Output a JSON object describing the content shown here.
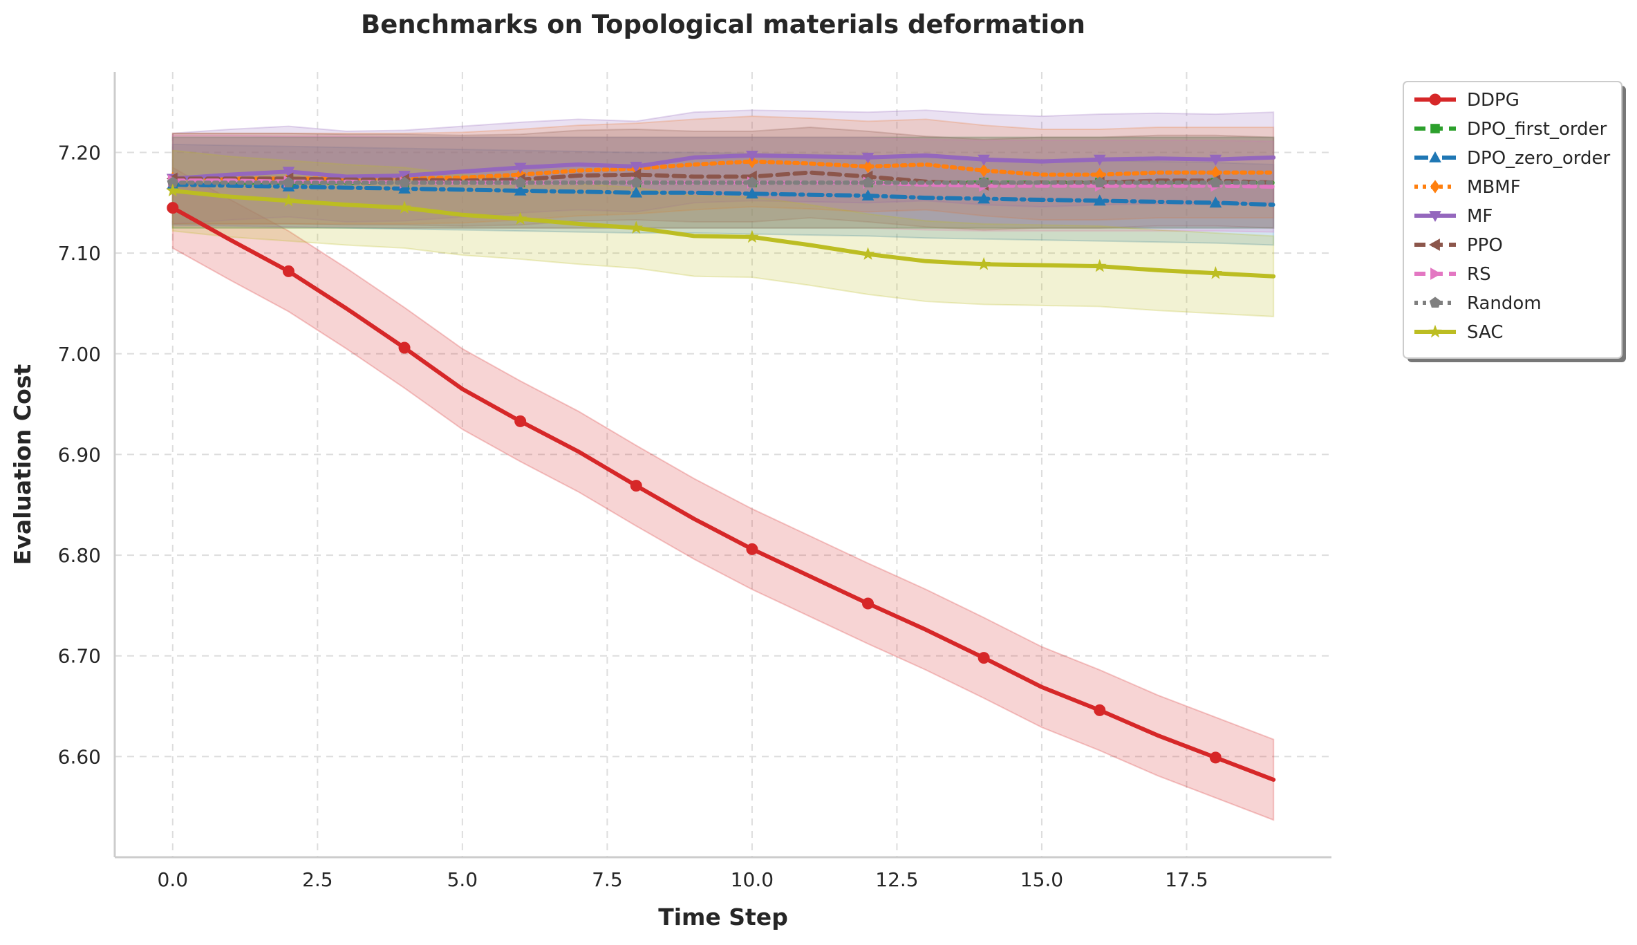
{
  "chart_data": {
    "type": "line",
    "title": "Benchmarks on Topological materials deformation",
    "xlabel": "Time Step",
    "ylabel": "Evaluation Cost",
    "xlim": [
      -1.0,
      20.0
    ],
    "ylim": [
      6.5,
      7.28
    ],
    "xticks": [
      0.0,
      2.5,
      5.0,
      7.5,
      10.0,
      12.5,
      15.0,
      17.5
    ],
    "xtick_labels": [
      "0.0",
      "2.5",
      "5.0",
      "7.5",
      "10.0",
      "12.5",
      "15.0",
      "17.5"
    ],
    "yticks": [
      6.6,
      6.7,
      6.8,
      6.9,
      7.0,
      7.1,
      7.2
    ],
    "ytick_labels": [
      "6.60",
      "6.70",
      "6.80",
      "6.90",
      "7.00",
      "7.10",
      "7.20"
    ],
    "grid": true,
    "legend_position": "outside-top-right",
    "x": [
      0,
      1,
      2,
      3,
      4,
      5,
      6,
      7,
      8,
      9,
      10,
      11,
      12,
      13,
      14,
      15,
      16,
      17,
      18,
      19
    ],
    "series": [
      {
        "name": "DDPG",
        "color": "#d62728",
        "dash": "solid",
        "marker": "circle",
        "values": [
          7.145,
          7.113,
          7.082,
          7.045,
          7.006,
          6.965,
          6.933,
          6.903,
          6.869,
          6.836,
          6.806,
          6.779,
          6.752,
          6.726,
          6.698,
          6.669,
          6.646,
          6.621,
          6.599,
          6.577
        ],
        "band": 0.04
      },
      {
        "name": "DPO_first_order",
        "color": "#2ca02c",
        "dash": "dashed",
        "marker": "square",
        "values": [
          7.17,
          7.17,
          7.17,
          7.17,
          7.17,
          7.17,
          7.17,
          7.17,
          7.17,
          7.17,
          7.17,
          7.17,
          7.17,
          7.17,
          7.17,
          7.17,
          7.17,
          7.17,
          7.17,
          7.17
        ],
        "band": 0.045
      },
      {
        "name": "DPO_zero_order",
        "color": "#1f77b4",
        "dash": "dashdot",
        "marker": "triangle-up",
        "values": [
          7.168,
          7.167,
          7.166,
          7.165,
          7.164,
          7.163,
          7.162,
          7.161,
          7.16,
          7.16,
          7.159,
          7.158,
          7.157,
          7.155,
          7.154,
          7.153,
          7.152,
          7.151,
          7.15,
          7.148
        ],
        "band": 0.04
      },
      {
        "name": "MBMF",
        "color": "#ff7f0e",
        "dash": "dotted",
        "marker": "diamond",
        "values": [
          7.174,
          7.174,
          7.174,
          7.174,
          7.174,
          7.175,
          7.178,
          7.182,
          7.184,
          7.188,
          7.191,
          7.189,
          7.186,
          7.188,
          7.182,
          7.178,
          7.178,
          7.18,
          7.18,
          7.18
        ],
        "band": 0.045
      },
      {
        "name": "MF",
        "color": "#9467bd",
        "dash": "solid",
        "marker": "triangle-down",
        "values": [
          7.174,
          7.178,
          7.181,
          7.176,
          7.177,
          7.181,
          7.185,
          7.188,
          7.186,
          7.195,
          7.197,
          7.196,
          7.195,
          7.197,
          7.193,
          7.191,
          7.193,
          7.194,
          7.193,
          7.195
        ],
        "band": 0.045
      },
      {
        "name": "PPO",
        "color": "#8c564b",
        "dash": "dashed",
        "marker": "triangle-left",
        "values": [
          7.174,
          7.174,
          7.174,
          7.173,
          7.173,
          7.172,
          7.173,
          7.177,
          7.178,
          7.176,
          7.176,
          7.18,
          7.176,
          7.171,
          7.168,
          7.17,
          7.17,
          7.172,
          7.172,
          7.17
        ],
        "band": 0.045
      },
      {
        "name": "RS",
        "color": "#e377c2",
        "dash": "dashed",
        "marker": "triangle-right",
        "values": [
          7.172,
          7.172,
          7.171,
          7.171,
          7.17,
          7.17,
          7.17,
          7.17,
          7.17,
          7.17,
          7.17,
          7.17,
          7.17,
          7.168,
          7.167,
          7.167,
          7.167,
          7.167,
          7.167,
          7.166
        ],
        "band": 0.045
      },
      {
        "name": "Random",
        "color": "#7f7f7f",
        "dash": "dotted",
        "marker": "pentagon",
        "values": [
          7.17,
          7.17,
          7.17,
          7.17,
          7.17,
          7.17,
          7.17,
          7.17,
          7.17,
          7.17,
          7.17,
          7.17,
          7.17,
          7.17,
          7.17,
          7.17,
          7.17,
          7.17,
          7.17,
          7.17
        ],
        "band": 0.045
      },
      {
        "name": "SAC",
        "color": "#bcbd22",
        "dash": "solid",
        "marker": "star",
        "values": [
          7.162,
          7.156,
          7.152,
          7.148,
          7.145,
          7.138,
          7.134,
          7.129,
          7.125,
          7.117,
          7.116,
          7.108,
          7.099,
          7.092,
          7.089,
          7.088,
          7.087,
          7.083,
          7.08,
          7.077
        ],
        "band": 0.04
      }
    ]
  }
}
